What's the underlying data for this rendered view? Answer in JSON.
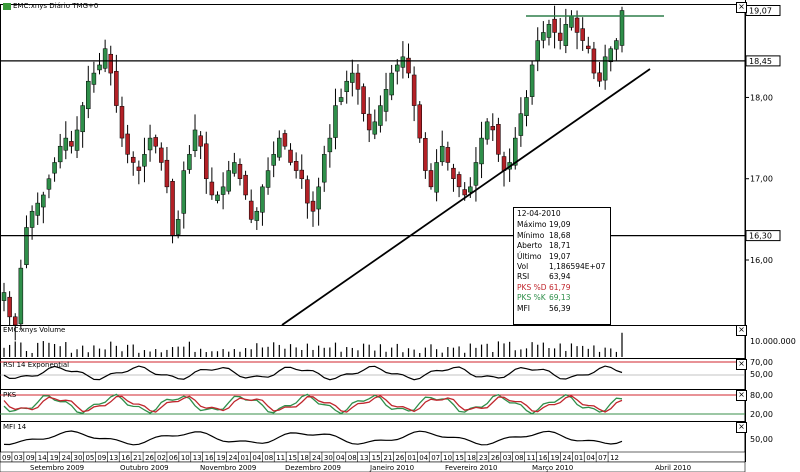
{
  "window_title": "EMC:xnys Diário TMG+0",
  "price_axis": {
    "ticks": [
      "18,00",
      "17,00",
      "16,00"
    ],
    "ylim": [
      15.2,
      19.15
    ]
  },
  "price_labels": {
    "last": "19,07",
    "resistance": "18,45",
    "support": "16,30"
  },
  "info_box": {
    "date": "12-04-2010",
    "rows": [
      {
        "label": "Máximo",
        "value": "19,09"
      },
      {
        "label": "Mínimo",
        "value": "18,68"
      },
      {
        "label": "Aberto",
        "value": "18,71"
      },
      {
        "label": "Último",
        "value": "19,07"
      },
      {
        "label": "Vol",
        "value": "1,186594E+07"
      },
      {
        "label": "RSI",
        "value": "63,94"
      },
      {
        "label": "PKS %D",
        "value": "61,79"
      },
      {
        "label": "PKS %K",
        "value": "69,13"
      },
      {
        "label": "MFI",
        "value": "56,39"
      }
    ]
  },
  "panels": {
    "volume": {
      "title": "EMC:xnys Volume",
      "tick": "10.000.000"
    },
    "rsi": {
      "title": "RSI 14 Exponential",
      "ticks": [
        "70,00",
        "50,00"
      ]
    },
    "pks": {
      "title": "PKS",
      "ticks": [
        "80,00",
        "20,00"
      ]
    },
    "mfi": {
      "title": "MFI 14",
      "ticks": [
        "50,00"
      ]
    }
  },
  "x_axis": {
    "days": [
      "09",
      "03",
      "09",
      "14",
      "19",
      "24",
      "30",
      "05",
      "09",
      "13",
      "16",
      "21",
      "26",
      "02",
      "06",
      "10",
      "13",
      "16",
      "19",
      "24",
      "01",
      "04",
      "08",
      "11",
      "15",
      "18",
      "24",
      "30",
      "04",
      "08",
      "13",
      "15",
      "21",
      "26",
      "01",
      "04",
      "07",
      "10",
      "15",
      "18",
      "23",
      "26",
      "03",
      "08",
      "11",
      "16",
      "19",
      "24",
      "01",
      "04",
      "07",
      "12"
    ],
    "months": [
      "Setembro 2009",
      "Outubro 2009",
      "Novembro 2009",
      "Dezembro 2009",
      "Janeiro 2010",
      "Fevereiro 2010",
      "Março 2010",
      "Abril 2010"
    ]
  },
  "chart_data": {
    "type": "candlestick",
    "title": "EMC:xnys Diário TMG+0",
    "ylim": [
      15.2,
      19.15
    ],
    "horizontal_lines": [
      18.45,
      16.3
    ],
    "trendline": {
      "from": [
        0.35,
        13.8
      ],
      "to": [
        0.81,
        18.2
      ]
    },
    "last": {
      "date": "12-04-2010",
      "open": 18.71,
      "high": 19.09,
      "low": 18.68,
      "close": 19.07,
      "volume": 11865940,
      "rsi": 63.94,
      "pks_d": 61.79,
      "pks_k": 69.13,
      "mfi": 56.39
    },
    "path_closes": [
      15.6,
      15.3,
      15.2,
      15.9,
      16.4,
      16.6,
      16.7,
      16.8,
      17.0,
      17.2,
      17.4,
      17.5,
      17.4,
      17.6,
      17.9,
      18.2,
      18.3,
      18.4,
      18.6,
      18.3,
      17.9,
      17.5,
      17.3,
      17.2,
      17.1,
      17.3,
      17.5,
      17.4,
      17.2,
      16.9,
      16.3,
      16.5,
      17.1,
      17.3,
      17.6,
      17.4,
      17.0,
      16.8,
      16.8,
      16.9,
      17.1,
      17.2,
      17.0,
      16.8,
      16.5,
      16.6,
      16.9,
      17.1,
      17.3,
      17.5,
      17.4,
      17.2,
      17.1,
      17.0,
      16.7,
      16.6,
      16.9,
      17.3,
      17.5,
      17.9,
      18.0,
      18.2,
      18.3,
      18.1,
      17.8,
      17.6,
      17.7,
      17.9,
      18.1,
      18.3,
      18.4,
      18.5,
      18.3,
      17.9,
      17.5,
      17.1,
      16.9,
      17.2,
      17.4,
      17.2,
      17.0,
      16.9,
      16.8,
      16.9,
      17.2,
      17.5,
      17.7,
      17.6,
      17.3,
      17.1,
      17.2,
      17.5,
      17.8,
      18.0,
      18.4,
      18.7,
      18.8,
      18.9,
      18.8,
      18.7,
      18.9,
      19.0,
      18.8,
      18.7,
      18.6,
      18.3,
      18.2,
      18.5,
      18.6,
      18.7,
      19.07
    ]
  }
}
